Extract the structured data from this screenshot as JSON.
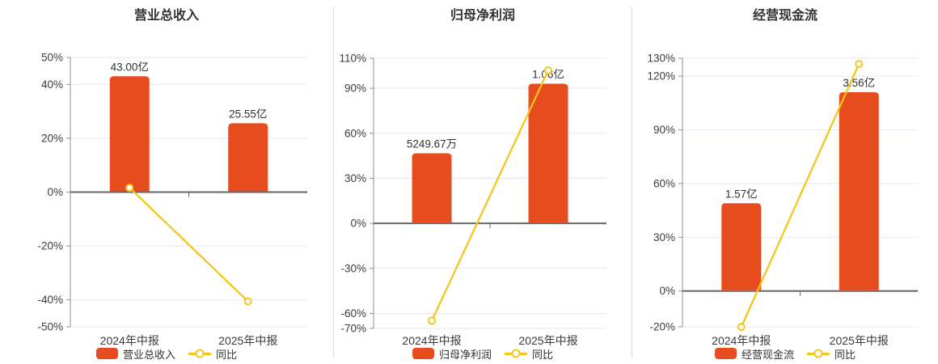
{
  "page": {
    "background": "#ffffff"
  },
  "colors": {
    "bar": "#e74c1f",
    "line": "#f6c51c",
    "marker_fill": "#ffffff",
    "grid": "#e4e9f4",
    "zero_axis": "#63666d",
    "y_axis": "#8a8f99",
    "tick_text": "#3b3b3b",
    "value_text": "#333333",
    "divider": "#d9d9d9"
  },
  "chart_data": [
    {
      "type": "bar+line",
      "title": "营业总收入",
      "categories": [
        "2024年中报",
        "2025年中报"
      ],
      "bars": {
        "name": "营业总收入",
        "value_labels": [
          "43.00亿",
          "25.55亿"
        ],
        "plot_pct": [
          43.0,
          25.55
        ]
      },
      "line": {
        "name": "同比",
        "values_pct": [
          1.6,
          -40.58
        ]
      },
      "yticks": [
        50,
        40,
        20,
        0,
        -20,
        -40,
        -50
      ],
      "ytick_suffix": "%",
      "ylim": [
        -50,
        50
      ],
      "grid": true,
      "legend_position": "bottom"
    },
    {
      "type": "bar+line",
      "title": "归母净利润",
      "categories": [
        "2024年中报",
        "2025年中报"
      ],
      "bars": {
        "name": "归母净利润",
        "value_labels": [
          "5249.67万",
          "1.06亿"
        ],
        "plot_pct": [
          46.7,
          93.0
        ]
      },
      "line": {
        "name": "同比",
        "values_pct": [
          -64.9,
          101.9
        ]
      },
      "yticks": [
        110,
        90,
        60,
        30,
        0,
        -30,
        -60,
        -70
      ],
      "ytick_suffix": "%",
      "ylim": [
        -70,
        110
      ],
      "grid": true,
      "legend_position": "bottom"
    },
    {
      "type": "bar+line",
      "title": "经营现金流",
      "categories": [
        "2024年中报",
        "2025年中报"
      ],
      "bars": {
        "name": "经营现金流",
        "value_labels": [
          "1.57亿",
          "3.56亿"
        ],
        "plot_pct": [
          49.0,
          111.0
        ]
      },
      "line": {
        "name": "同比",
        "values_pct": [
          -20.1,
          126.8
        ]
      },
      "yticks": [
        130,
        120,
        90,
        60,
        30,
        0,
        -20
      ],
      "ytick_suffix": "%",
      "ylim": [
        -20,
        130
      ],
      "grid": true,
      "legend_position": "bottom"
    }
  ]
}
